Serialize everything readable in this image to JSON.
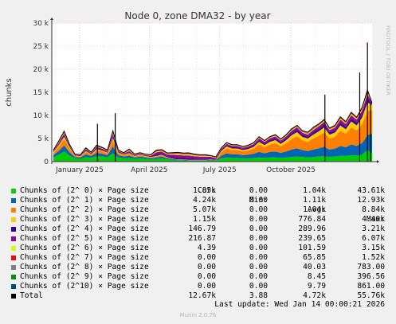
{
  "chart_data": {
    "type": "area",
    "stacked": true,
    "title": "Node 0, zone DMA32 - by year",
    "xlabel": "",
    "ylabel": "chunks",
    "ylim": [
      0,
      30000
    ],
    "yticks": [
      {
        "value": 0,
        "label": "0"
      },
      {
        "value": 5000,
        "label": "5 k"
      },
      {
        "value": 10000,
        "label": "10 k"
      },
      {
        "value": 15000,
        "label": "15 k"
      },
      {
        "value": 20000,
        "label": "20 k"
      },
      {
        "value": 25000,
        "label": "25 k"
      },
      {
        "value": 30000,
        "label": "30 k"
      }
    ],
    "xlim": [
      "2024-11-26",
      "2026-01-14"
    ],
    "xticks": [
      {
        "date": "2025-01-01",
        "label": "January 2025"
      },
      {
        "date": "2025-04-01",
        "label": "April 2025"
      },
      {
        "date": "2025-07-01",
        "label": "July 2025"
      },
      {
        "date": "2025-10-01",
        "label": "October 2025"
      }
    ],
    "x": [
      "2024-11-28",
      "2024-12-05",
      "2024-12-12",
      "2024-12-19",
      "2024-12-26",
      "2025-01-02",
      "2025-01-09",
      "2025-01-16",
      "2025-01-23",
      "2025-01-30",
      "2025-02-06",
      "2025-02-13",
      "2025-02-20",
      "2025-02-27",
      "2025-03-06",
      "2025-03-13",
      "2025-03-20",
      "2025-03-27",
      "2025-04-03",
      "2025-04-10",
      "2025-04-17",
      "2025-04-24",
      "2025-05-01",
      "2025-05-08",
      "2025-05-15",
      "2025-05-22",
      "2025-05-29",
      "2025-06-05",
      "2025-06-12",
      "2025-06-19",
      "2025-06-26",
      "2025-07-03",
      "2025-07-10",
      "2025-07-17",
      "2025-07-24",
      "2025-07-31",
      "2025-08-07",
      "2025-08-14",
      "2025-08-21",
      "2025-08-28",
      "2025-09-04",
      "2025-09-11",
      "2025-09-18",
      "2025-09-25",
      "2025-10-02",
      "2025-10-09",
      "2025-10-16",
      "2025-10-23",
      "2025-10-30",
      "2025-11-06",
      "2025-11-13",
      "2025-11-20",
      "2025-11-27",
      "2025-12-04",
      "2025-12-11",
      "2025-12-18",
      "2025-12-25",
      "2026-01-01",
      "2026-01-08",
      "2026-01-14"
    ],
    "series": [
      {
        "name": "Chunks of (2^ 0) × Page size",
        "color": "#00cc00",
        "values": [
          900,
          1500,
          2200,
          1300,
          700,
          600,
          1000,
          800,
          1200,
          1100,
          900,
          1800,
          900,
          700,
          800,
          600,
          700,
          600,
          500,
          600,
          700,
          500,
          400,
          300,
          300,
          200,
          200,
          200,
          200,
          300,
          200,
          700,
          900,
          800,
          800,
          700,
          700,
          800,
          900,
          800,
          900,
          900,
          800,
          900,
          1000,
          1100,
          1000,
          900,
          1000,
          1100,
          1200,
          1000,
          1100,
          1300,
          1200,
          1400,
          1300,
          1500,
          2500,
          1850
        ]
      },
      {
        "name": "Chunks of (2^ 1) × Page size",
        "color": "#0066b3",
        "values": [
          500,
          800,
          1300,
          700,
          300,
          300,
          600,
          400,
          700,
          600,
          500,
          1500,
          500,
          400,
          500,
          300,
          400,
          300,
          250,
          300,
          400,
          250,
          150,
          100,
          100,
          100,
          100,
          100,
          100,
          100,
          100,
          600,
          900,
          800,
          800,
          700,
          800,
          900,
          1200,
          1000,
          1200,
          1300,
          1100,
          1300,
          1600,
          1800,
          1500,
          1400,
          1600,
          1800,
          2000,
          1600,
          1700,
          2100,
          1900,
          2300,
          2100,
          2500,
          3200,
          4240
        ]
      },
      {
        "name": "Chunks of (2^ 2) × Page size",
        "color": "#ff8000",
        "values": [
          400,
          900,
          1400,
          800,
          200,
          200,
          500,
          300,
          600,
          500,
          400,
          1300,
          400,
          300,
          400,
          200,
          300,
          200,
          150,
          200,
          300,
          150,
          100,
          50,
          50,
          50,
          50,
          50,
          50,
          50,
          50,
          700,
          1100,
          900,
          900,
          800,
          900,
          1100,
          1600,
          1300,
          1600,
          1800,
          1400,
          1800,
          2300,
          2600,
          2100,
          2000,
          2400,
          2700,
          3100,
          2400,
          2600,
          3300,
          2900,
          3700,
          3300,
          4100,
          5200,
          5070
        ]
      },
      {
        "name": "Chunks of (2^ 3) × Page size",
        "color": "#ffcc00",
        "values": [
          200,
          400,
          500,
          300,
          100,
          100,
          200,
          100,
          200,
          200,
          150,
          500,
          150,
          100,
          150,
          100,
          100,
          100,
          80,
          100,
          100,
          60,
          40,
          30,
          30,
          30,
          30,
          30,
          30,
          30,
          30,
          300,
          400,
          350,
          350,
          300,
          350,
          400,
          600,
          500,
          600,
          650,
          550,
          650,
          800,
          900,
          750,
          700,
          850,
          950,
          1100,
          850,
          900,
          1150,
          1000,
          1300,
          1150,
          1450,
          1900,
          1150
        ]
      },
      {
        "name": "Chunks of (2^ 4) × Page size",
        "color": "#330099",
        "values": [
          100,
          200,
          300,
          150,
          80,
          80,
          150,
          100,
          200,
          150,
          120,
          400,
          120,
          100,
          150,
          100,
          100,
          80,
          100,
          300,
          250,
          200,
          300,
          350,
          300,
          350,
          300,
          250,
          250,
          200,
          150,
          200,
          250,
          250,
          250,
          220,
          250,
          280,
          350,
          300,
          350,
          380,
          330,
          380,
          450,
          500,
          420,
          400,
          480,
          520,
          580,
          460,
          500,
          600,
          540,
          660,
          600,
          720,
          900,
          147
        ]
      },
      {
        "name": "Chunks of (2^ 5) × Page size",
        "color": "#990099",
        "values": [
          150,
          300,
          400,
          200,
          100,
          100,
          250,
          150,
          300,
          250,
          200,
          500,
          200,
          150,
          250,
          150,
          150,
          150,
          200,
          500,
          450,
          400,
          500,
          600,
          550,
          600,
          500,
          450,
          450,
          350,
          250,
          250,
          300,
          300,
          300,
          280,
          300,
          330,
          400,
          350,
          400,
          430,
          380,
          430,
          500,
          550,
          470,
          450,
          530,
          570,
          630,
          510,
          550,
          650,
          590,
          710,
          650,
          770,
          950,
          217
        ]
      },
      {
        "name": "Chunks of (2^ 6) × Page size",
        "color": "#ccff00",
        "values": [
          80,
          150,
          200,
          100,
          50,
          50,
          120,
          80,
          150,
          120,
          100,
          250,
          100,
          80,
          120,
          80,
          80,
          80,
          100,
          200,
          180,
          150,
          200,
          250,
          220,
          250,
          200,
          180,
          180,
          140,
          100,
          100,
          120,
          120,
          120,
          110,
          120,
          130,
          150,
          140,
          160,
          170,
          150,
          170,
          200,
          220,
          190,
          180,
          210,
          230,
          250,
          200,
          220,
          260,
          240,
          280,
          260,
          300,
          380,
          4
        ]
      },
      {
        "name": "Chunks of (2^ 7) × Page size",
        "color": "#ff0000",
        "values": [
          50,
          100,
          150,
          80,
          30,
          30,
          80,
          50,
          100,
          80,
          60,
          200,
          60,
          50,
          80,
          50,
          50,
          50,
          60,
          120,
          100,
          80,
          120,
          150,
          130,
          150,
          120,
          100,
          100,
          80,
          60,
          60,
          70,
          70,
          70,
          65,
          70,
          75,
          90,
          80,
          95,
          100,
          90,
          100,
          120,
          130,
          110,
          105,
          125,
          135,
          150,
          120,
          130,
          155,
          140,
          165,
          150,
          180,
          220,
          0
        ]
      },
      {
        "name": "Chunks of (2^ 8) × Page size",
        "color": "#808080",
        "values": [
          30,
          60,
          80,
          40,
          20,
          20,
          50,
          30,
          60,
          50,
          40,
          120,
          40,
          30,
          50,
          30,
          30,
          30,
          40,
          80,
          70,
          50,
          80,
          100,
          90,
          100,
          80,
          70,
          70,
          50,
          40,
          40,
          45,
          45,
          45,
          40,
          45,
          50,
          60,
          55,
          60,
          65,
          60,
          65,
          75,
          80,
          70,
          68,
          78,
          85,
          95,
          75,
          80,
          100,
          90,
          105,
          95,
          115,
          140,
          0
        ]
      },
      {
        "name": "Chunks of (2^ 9) × Page size",
        "color": "#008f00",
        "values": [
          15,
          30,
          40,
          20,
          10,
          10,
          25,
          15,
          30,
          25,
          20,
          60,
          20,
          15,
          25,
          15,
          15,
          15,
          20,
          40,
          35,
          25,
          40,
          50,
          45,
          50,
          40,
          35,
          35,
          25,
          20,
          20,
          22,
          22,
          22,
          20,
          22,
          25,
          30,
          27,
          30,
          32,
          30,
          32,
          37,
          40,
          35,
          34,
          39,
          42,
          47,
          37,
          40,
          50,
          45,
          52,
          47,
          57,
          70,
          0
        ]
      },
      {
        "name": "Chunks of (2^10) × Page size",
        "color": "#00487d",
        "values": [
          10,
          15,
          20,
          10,
          5,
          5,
          12,
          8,
          15,
          12,
          10,
          30,
          10,
          8,
          12,
          8,
          8,
          8,
          10,
          20,
          18,
          12,
          20,
          25,
          22,
          25,
          20,
          18,
          18,
          12,
          10,
          10,
          11,
          11,
          11,
          10,
          11,
          12,
          15,
          13,
          15,
          16,
          15,
          16,
          18,
          20,
          17,
          17,
          19,
          21,
          23,
          18,
          20,
          25,
          22,
          26,
          23,
          28,
          35,
          0
        ]
      },
      {
        "name": "Total",
        "color": "#000000",
        "values": [
          2435,
          4455,
          6590,
          3700,
          1595,
          1495,
          2987,
          2033,
          3555,
          3087,
          2500,
          6660,
          2500,
          1933,
          2737,
          1633,
          1933,
          1613,
          1510,
          2460,
          2603,
          1877,
          1950,
          2005,
          1837,
          1905,
          1640,
          1483,
          1483,
          1337,
          1010,
          2980,
          4118,
          3668,
          3668,
          3265,
          3568,
          4102,
          5395,
          4565,
          5410,
          5843,
          4905,
          5843,
          7100,
          7840,
          6662,
          6354,
          7431,
          8163,
          9125,
          7270,
          7840,
          9690,
          8667,
          10698,
          9625,
          11720,
          15495,
          12670
        ]
      }
    ],
    "spikes": [
      {
        "x": "2025-01-24",
        "value": 8200
      },
      {
        "x": "2025-02-16",
        "value": 10500
      },
      {
        "x": "2025-11-14",
        "value": 14500
      },
      {
        "x": "2025-12-29",
        "value": 19300
      },
      {
        "x": "2026-01-08",
        "value": 25800
      },
      {
        "x": "2026-01-12",
        "value": 12500
      }
    ]
  },
  "side_label": "RRDTOOL / TOBI OETIKER",
  "legend": {
    "headers": {
      "cur": "Cur:",
      "min": "Min:",
      "avg": "Avg:",
      "max": "Max:"
    },
    "rows": [
      {
        "label": "Chunks of (2^ 0) × Page size",
        "color": "#00cc00",
        "cur": "1.85k",
        "min": "0.00",
        "avg": "1.04k",
        "max": "43.61k"
      },
      {
        "label": "Chunks of (2^ 1) × Page size",
        "color": "#0066b3",
        "cur": "4.24k",
        "min": "0.00",
        "avg": "1.11k",
        "max": "12.93k"
      },
      {
        "label": "Chunks of (2^ 2) × Page size",
        "color": "#ff8000",
        "cur": "5.07k",
        "min": "0.00",
        "avg": "1.04k",
        "max": "8.84k"
      },
      {
        "label": "Chunks of (2^ 3) × Page size",
        "color": "#ffcc00",
        "cur": "1.15k",
        "min": "0.00",
        "avg": "776.84",
        "max": "4.40k"
      },
      {
        "label": "Chunks of (2^ 4) × Page size",
        "color": "#330099",
        "cur": "146.79",
        "min": "0.00",
        "avg": "289.96",
        "max": "3.21k"
      },
      {
        "label": "Chunks of (2^ 5) × Page size",
        "color": "#990099",
        "cur": "216.87",
        "min": "0.00",
        "avg": "239.65",
        "max": "6.07k"
      },
      {
        "label": "Chunks of (2^ 6) × Page size",
        "color": "#ccff00",
        "cur": "4.39",
        "min": "0.00",
        "avg": "101.59",
        "max": "3.15k"
      },
      {
        "label": "Chunks of (2^ 7) × Page size",
        "color": "#ff0000",
        "cur": "0.00",
        "min": "0.00",
        "avg": "65.85",
        "max": "1.52k"
      },
      {
        "label": "Chunks of (2^ 8) × Page size",
        "color": "#808080",
        "cur": "0.00",
        "min": "0.00",
        "avg": "40.03",
        "max": "783.00"
      },
      {
        "label": "Chunks of (2^ 9) × Page size",
        "color": "#008f00",
        "cur": "0.00",
        "min": "0.00",
        "avg": "8.45",
        "max": "396.56"
      },
      {
        "label": "Chunks of (2^10) × Page size",
        "color": "#00487d",
        "cur": "0.00",
        "min": "0.00",
        "avg": "9.79",
        "max": "861.00"
      },
      {
        "label": "Total",
        "color": "#000000",
        "cur": "12.67k",
        "min": "3.88",
        "avg": "4.72k",
        "max": "55.76k"
      }
    ]
  },
  "last_update": "Last update: Wed Jan 14 00:00:21 2026",
  "footer": "Munin 2.0.76"
}
